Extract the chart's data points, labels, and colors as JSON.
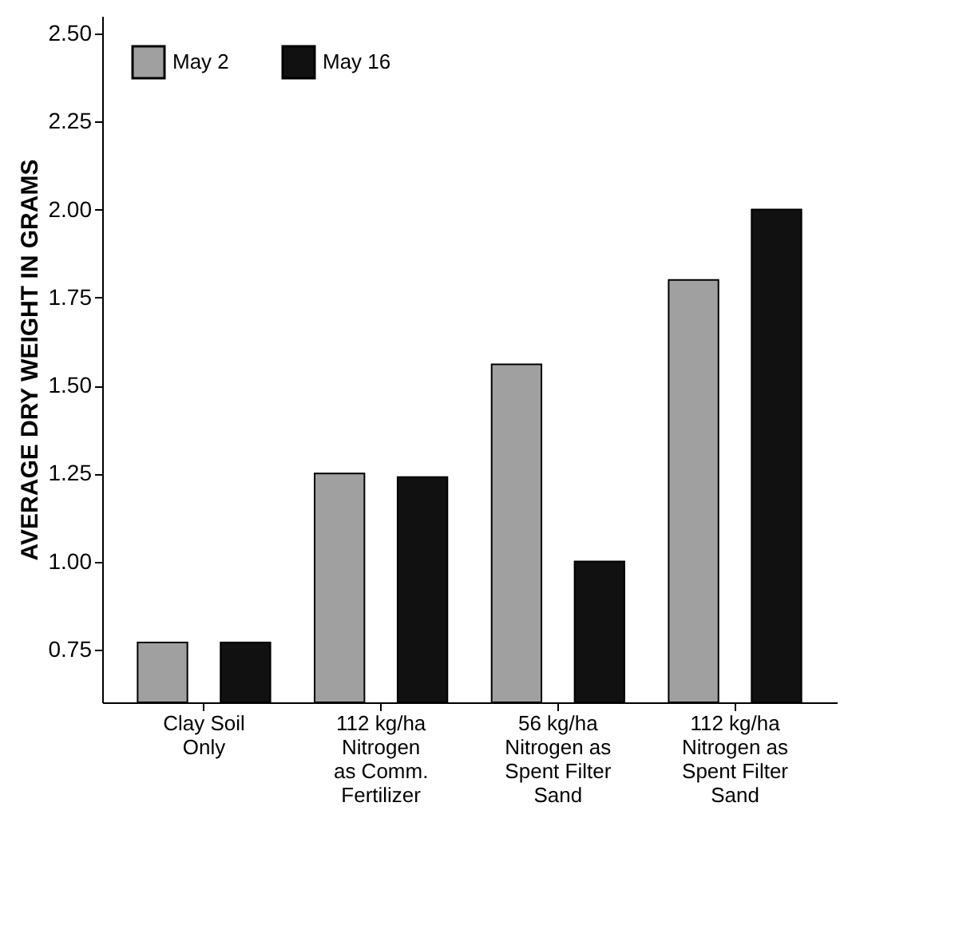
{
  "chart_data": {
    "type": "bar",
    "ylabel": "AVERAGE DRY WEIGHT IN GRAMS",
    "categories": [
      "Clay Soil\nOnly",
      "112 kg/ha\nNitrogen\nas Comm.\nFertilizer",
      "56 kg/ha\nNitrogen as\nSpent Filter\nSand",
      "112 kg/ha\nNitrogen as\nSpent Filter\nSand"
    ],
    "series": [
      {
        "name": "May 2",
        "color": "#a0a0a0",
        "values": [
          0.77,
          1.25,
          1.56,
          1.8
        ]
      },
      {
        "name": "May 16",
        "color": "#111111",
        "values": [
          0.77,
          1.24,
          1.0,
          2.0
        ]
      }
    ],
    "ylim": [
      0.6,
      2.55
    ],
    "yticks": [
      0.75,
      {
        "value": 1,
        "label": "1.00"
      },
      1.25,
      {
        "value": 1.5,
        "label": "1.50"
      },
      1.75,
      {
        "value": 2,
        "label": "2.00"
      },
      2.25,
      {
        "value": 2.5,
        "label": "2.50"
      }
    ],
    "grid": false,
    "legend": "top left"
  }
}
